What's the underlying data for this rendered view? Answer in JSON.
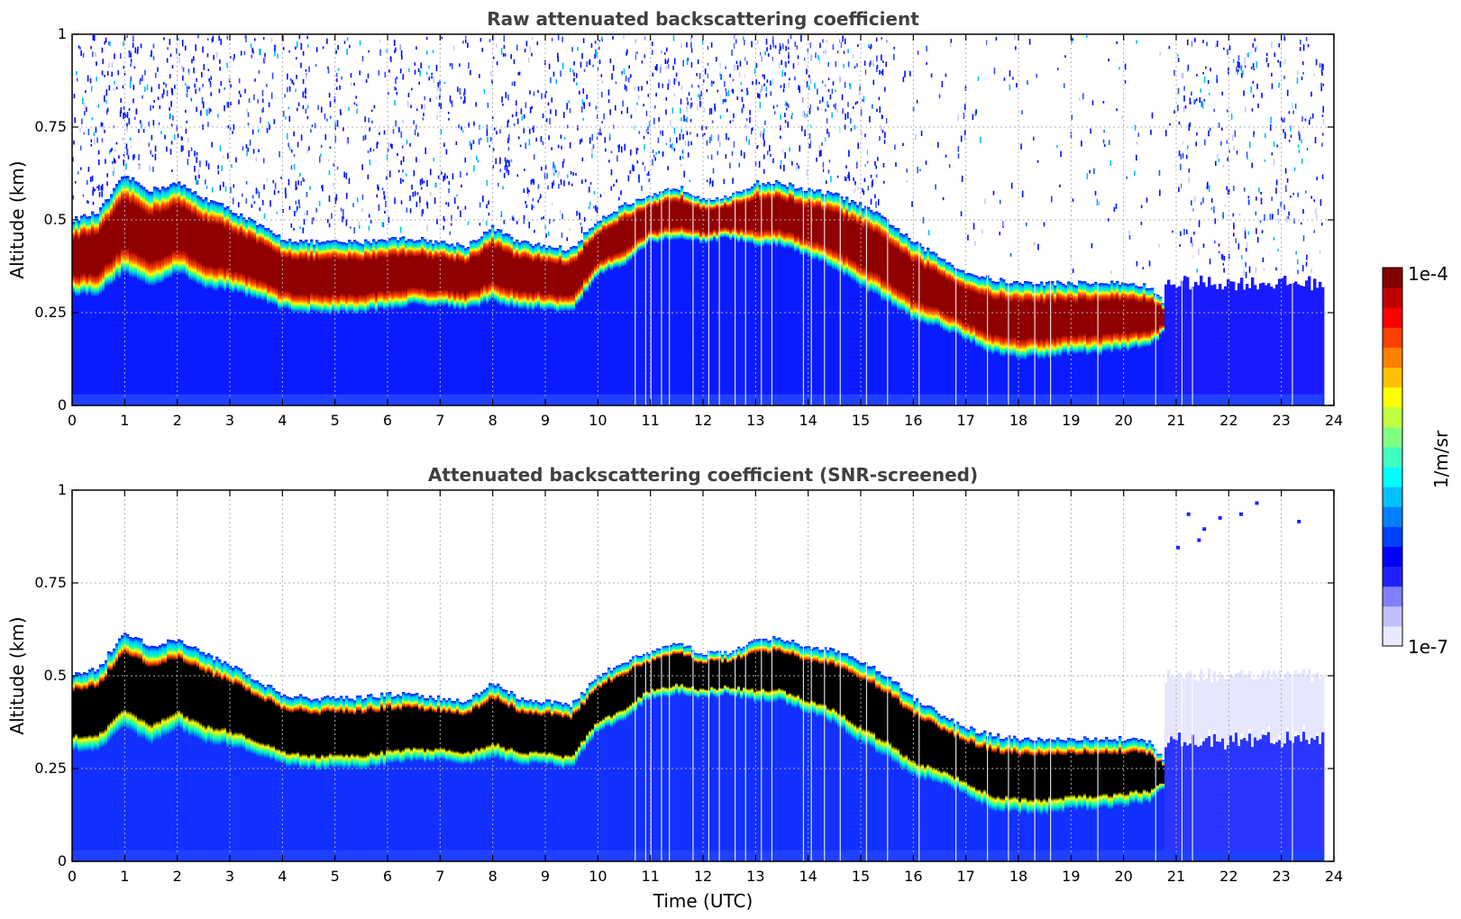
{
  "chart_data": [
    {
      "type": "heatmap",
      "title": "Raw attenuated backscattering coefficient",
      "xlabel": "",
      "ylabel": "Altitude (km)",
      "xlim": [
        0,
        24
      ],
      "ylim": [
        0,
        1
      ],
      "x_ticks": [
        "0",
        "1",
        "2",
        "3",
        "4",
        "5",
        "6",
        "7",
        "8",
        "9",
        "10",
        "11",
        "12",
        "13",
        "14",
        "15",
        "16",
        "17",
        "18",
        "19",
        "20",
        "21",
        "22",
        "23",
        "24"
      ],
      "y_ticks": [
        "0",
        "0.25",
        "0.5",
        "0.75",
        "1"
      ],
      "grid": true,
      "data_end_hour": 23.8,
      "layer": {
        "time": [
          0,
          0.5,
          1,
          1.5,
          2,
          2.5,
          3,
          3.5,
          4,
          4.5,
          5,
          5.5,
          6,
          6.5,
          7,
          7.5,
          8,
          8.5,
          9,
          9.5,
          10,
          10.5,
          11,
          11.5,
          12,
          12.5,
          13,
          13.5,
          14,
          14.5,
          15,
          15.5,
          16,
          16.5,
          17,
          17.5,
          18,
          18.5,
          19,
          19.5,
          20,
          20.5,
          20.8
        ],
        "top_km": [
          0.5,
          0.52,
          0.62,
          0.58,
          0.6,
          0.56,
          0.53,
          0.49,
          0.45,
          0.44,
          0.44,
          0.44,
          0.45,
          0.45,
          0.44,
          0.43,
          0.48,
          0.44,
          0.43,
          0.42,
          0.5,
          0.54,
          0.56,
          0.59,
          0.56,
          0.56,
          0.6,
          0.6,
          0.58,
          0.57,
          0.54,
          0.5,
          0.44,
          0.4,
          0.36,
          0.34,
          0.33,
          0.33,
          0.33,
          0.33,
          0.33,
          0.32,
          0.27
        ],
        "base_km": [
          0.3,
          0.3,
          0.36,
          0.32,
          0.36,
          0.32,
          0.31,
          0.29,
          0.26,
          0.25,
          0.25,
          0.25,
          0.26,
          0.27,
          0.27,
          0.26,
          0.28,
          0.26,
          0.26,
          0.25,
          0.35,
          0.38,
          0.44,
          0.45,
          0.44,
          0.45,
          0.43,
          0.43,
          0.4,
          0.37,
          0.32,
          0.28,
          0.23,
          0.21,
          0.18,
          0.14,
          0.13,
          0.13,
          0.14,
          0.14,
          0.15,
          0.16,
          0.2
        ]
      },
      "noise_gap_hours": [
        [
          15.5,
          21.0
        ]
      ]
    },
    {
      "type": "heatmap",
      "title": "Attenuated backscattering coefficient (SNR-screened)",
      "xlabel": "Time (UTC)",
      "ylabel": "Altitude (km)",
      "xlim": [
        0,
        24
      ],
      "ylim": [
        0,
        1
      ],
      "x_ticks": [
        "0",
        "1",
        "2",
        "3",
        "4",
        "5",
        "6",
        "7",
        "8",
        "9",
        "10",
        "11",
        "12",
        "13",
        "14",
        "15",
        "16",
        "17",
        "18",
        "19",
        "20",
        "21",
        "22",
        "23",
        "24"
      ],
      "y_ticks": [
        "0",
        "0.25",
        "0.5",
        "0.75",
        "1"
      ],
      "grid": true,
      "data_end_hour": 23.8,
      "saturated_core_color": "#000000"
    }
  ],
  "colorbar": {
    "label": "1/m/sr",
    "max_label": "1e-4",
    "min_label": "1e-7",
    "scale": "log",
    "range": [
      1e-07,
      0.0001
    ],
    "colormap": [
      "#e8e8ff",
      "#c0c0ff",
      "#8080ff",
      "#2020ff",
      "#0000ff",
      "#0040ff",
      "#0080ff",
      "#00c0ff",
      "#00ffff",
      "#40ffc0",
      "#80ff80",
      "#c0ff40",
      "#ffff00",
      "#ffc000",
      "#ff8000",
      "#ff4000",
      "#ff0000",
      "#c00000",
      "#800000"
    ]
  }
}
